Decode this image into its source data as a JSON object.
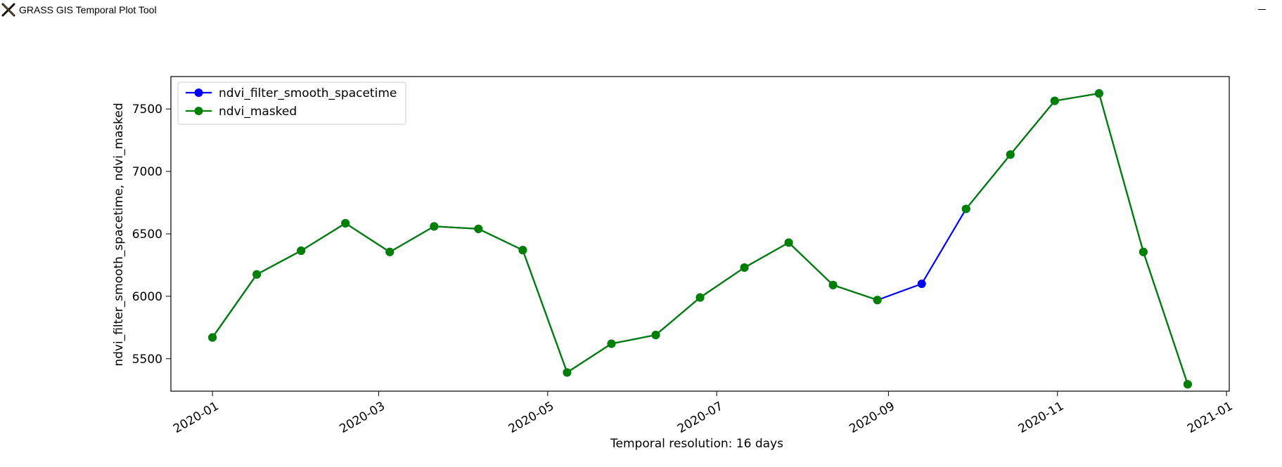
{
  "window": {
    "title": "GRASS GIS Temporal Plot Tool",
    "icon": "grass-gis-x-icon"
  },
  "chart_data": {
    "type": "line",
    "xlabel": "Temporal resolution: 16 days",
    "ylabel": "ndvi_filter_smooth_spacetime, ndvi_masked",
    "x_ticks": [
      "2020-01",
      "2020-03",
      "2020-05",
      "2020-07",
      "2020-09",
      "2020-11",
      "2021-01"
    ],
    "y_ticks": [
      5500,
      6000,
      6500,
      7000,
      7500
    ],
    "xlim": [
      "2019-12-17",
      "2021-01-02"
    ],
    "ylim": [
      5240,
      7760
    ],
    "legend_position": "upper-left",
    "grid": false,
    "series": [
      {
        "name": "ndvi_filter_smooth_spacetime",
        "color": "#0000ff",
        "marker": "circle",
        "x": [
          "2020-01-01",
          "2020-01-17",
          "2020-02-02",
          "2020-02-18",
          "2020-03-05",
          "2020-03-21",
          "2020-04-06",
          "2020-04-22",
          "2020-05-08",
          "2020-05-24",
          "2020-06-09",
          "2020-06-25",
          "2020-07-11",
          "2020-07-27",
          "2020-08-12",
          "2020-08-28",
          "2020-09-13",
          "2020-09-29",
          "2020-10-15",
          "2020-10-31",
          "2020-11-16",
          "2020-12-02",
          "2020-12-18"
        ],
        "values": [
          5670,
          6175,
          6365,
          6585,
          6355,
          6560,
          6540,
          6370,
          5390,
          5620,
          5690,
          5990,
          6230,
          6430,
          6090,
          5970,
          6100,
          6700,
          7135,
          7565,
          7625,
          6355,
          5295
        ]
      },
      {
        "name": "ndvi_masked",
        "color": "#008000",
        "marker": "circle",
        "x": [
          "2020-01-01",
          "2020-01-17",
          "2020-02-02",
          "2020-02-18",
          "2020-03-05",
          "2020-03-21",
          "2020-04-06",
          "2020-04-22",
          "2020-05-08",
          "2020-05-24",
          "2020-06-09",
          "2020-06-25",
          "2020-07-11",
          "2020-07-27",
          "2020-08-12",
          "2020-08-28",
          null,
          "2020-09-29",
          "2020-10-15",
          "2020-10-31",
          "2020-11-16",
          "2020-12-02",
          "2020-12-18"
        ],
        "values": [
          5670,
          6175,
          6365,
          6585,
          6355,
          6560,
          6540,
          6370,
          5390,
          5620,
          5690,
          5990,
          6230,
          6430,
          6090,
          5970,
          null,
          6700,
          7135,
          7565,
          7625,
          6355,
          5295
        ]
      }
    ]
  }
}
